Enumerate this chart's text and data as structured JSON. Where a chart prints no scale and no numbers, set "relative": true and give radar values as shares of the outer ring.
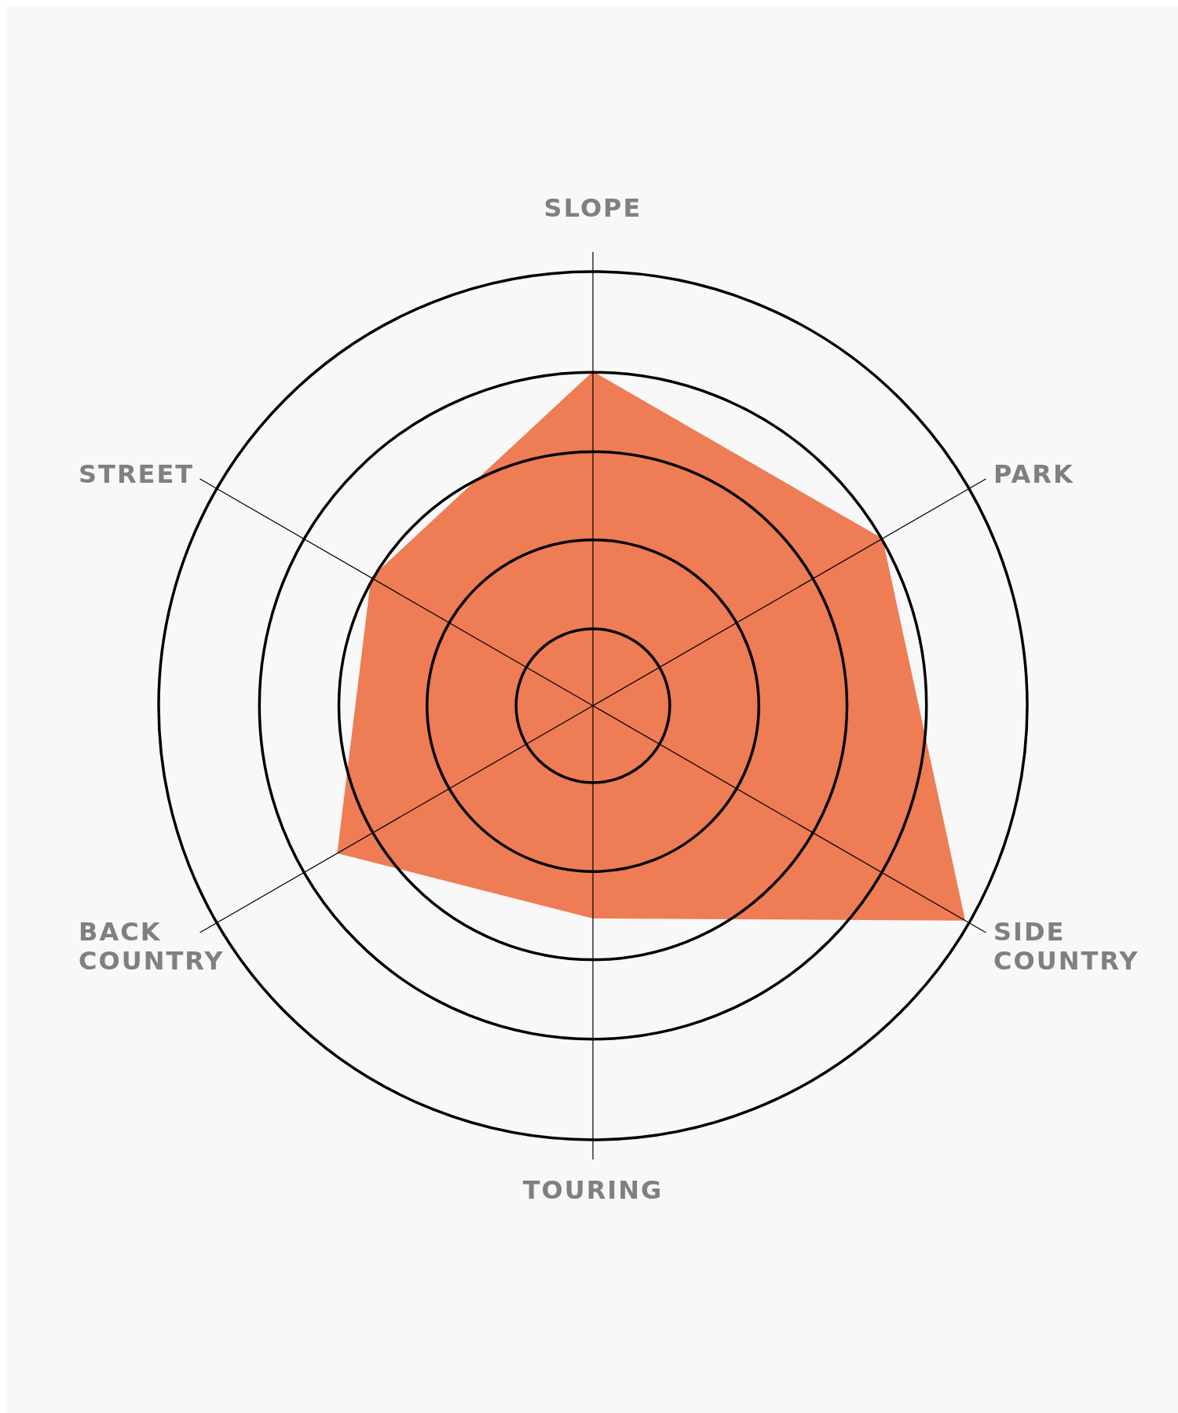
{
  "chart_data": {
    "type": "radar",
    "relative": true,
    "grid": true,
    "categories": [
      "SLOPE",
      "PARK",
      "SIDE COUNTRY",
      "TOURING",
      "BACK COUNTRY",
      "STREET"
    ],
    "series": [
      {
        "color": "#ee7c55",
        "values": [
          0.77,
          0.77,
          0.99,
          0.49,
          0.68,
          0.59
        ]
      }
    ]
  }
}
